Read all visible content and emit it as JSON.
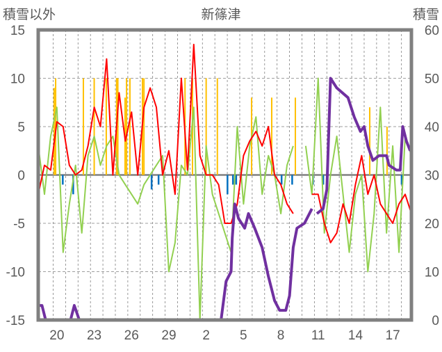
{
  "chart_data": {
    "type": "line",
    "title": "新篠津",
    "ylabel_left": "積雪以外",
    "ylabel_right": "積雪",
    "ylim_left": [
      -15,
      15
    ],
    "ylim_right": [
      0,
      60
    ],
    "yticks_left": [
      "15",
      "10",
      "5",
      "0",
      "-5",
      "-10",
      "-15"
    ],
    "yticks_left_values": [
      15,
      10,
      5,
      0,
      -5,
      -10,
      -15
    ],
    "yticks_right": [
      "60",
      "50",
      "40",
      "30",
      "20",
      "10",
      "0"
    ],
    "yticks_right_values": [
      60,
      50,
      40,
      30,
      20,
      10,
      0
    ],
    "xlim_days": [
      0,
      30
    ],
    "xtick_labels": [
      "20",
      "23",
      "26",
      "29",
      "2",
      "5",
      "8",
      "11",
      "14",
      "17"
    ],
    "xtick_positions_days": [
      1.5,
      4.5,
      7.5,
      10.5,
      13.5,
      16.5,
      19.5,
      22.5,
      25.5,
      28.5
    ],
    "grid": true,
    "colors": {
      "red": "#ff0000",
      "green": "#92d050",
      "orange": "#ffc000",
      "blue": "#0070c0",
      "purple": "#7030a0",
      "frame": "#808080"
    },
    "series": [
      {
        "name": "green",
        "axis": "left",
        "step_days": 0.5,
        "values": [
          3,
          -2,
          4,
          7,
          -8,
          -3,
          1,
          -6,
          2,
          4,
          1,
          3,
          4,
          0,
          -1,
          -2,
          -3,
          -1,
          0,
          1,
          2,
          -10,
          -7,
          1,
          0,
          7,
          -15,
          3,
          -2,
          -4,
          -6,
          -8,
          5,
          -3,
          3,
          6,
          -2,
          2,
          0,
          -4,
          1,
          3,
          null,
          3,
          -2,
          10,
          -6,
          0,
          4,
          -2,
          -8,
          -2,
          0,
          -10,
          -4,
          7,
          -6,
          3,
          -8,
          4,
          2
        ]
      },
      {
        "name": "red",
        "axis": "left",
        "step_days": 0.5,
        "values": [
          -2,
          1,
          0.5,
          5.5,
          5,
          1,
          0,
          0.5,
          3,
          7,
          5,
          12,
          0,
          8.5,
          3.5,
          6.5,
          0,
          7,
          9,
          7,
          0,
          2.5,
          -2,
          10,
          0.5,
          13.5,
          2,
          0,
          0,
          -1,
          -5,
          -5,
          -3,
          2,
          3.5,
          4.5,
          3,
          5,
          0,
          -1,
          -3,
          -4,
          null,
          null,
          -2,
          -2,
          -5,
          -7,
          -6,
          -3,
          -5,
          -1,
          2,
          -2,
          0,
          -3,
          -4,
          -5,
          -3,
          -2,
          -4
        ]
      },
      {
        "name": "purple",
        "axis": "right",
        "points": [
          [
            0,
            3
          ],
          [
            0.3,
            3
          ],
          [
            0.6,
            0
          ],
          [
            2.6,
            0
          ],
          [
            2.9,
            3
          ],
          [
            3.3,
            0
          ],
          [
            14.7,
            0
          ],
          [
            15.1,
            8
          ],
          [
            15.5,
            10
          ],
          [
            15.6,
            17
          ],
          [
            15.8,
            24
          ],
          [
            16.1,
            21
          ],
          [
            16.6,
            19
          ],
          [
            16.9,
            22
          ],
          [
            17.4,
            19
          ],
          [
            18.0,
            15
          ],
          [
            18.5,
            9
          ],
          [
            19.0,
            4
          ],
          [
            19.4,
            2
          ],
          [
            19.9,
            2
          ],
          [
            20.2,
            5
          ],
          [
            20.5,
            15
          ],
          [
            20.8,
            19
          ],
          [
            21.4,
            20
          ],
          [
            21.8,
            22
          ],
          [
            22.0,
            23
          ],
          [
            null,
            null
          ],
          [
            22.4,
            22
          ],
          [
            22.9,
            23
          ],
          [
            23.2,
            27
          ],
          [
            23.5,
            50
          ],
          [
            24.0,
            48
          ],
          [
            24.9,
            46
          ],
          [
            25.4,
            42
          ],
          [
            25.9,
            39
          ],
          [
            26.2,
            40
          ],
          [
            26.5,
            36
          ],
          [
            26.9,
            33
          ],
          [
            27.4,
            34
          ],
          [
            28.0,
            34
          ],
          [
            28.2,
            32
          ],
          [
            28.8,
            31
          ],
          [
            29.1,
            31
          ],
          [
            29.3,
            40
          ],
          [
            29.6,
            37
          ],
          [
            29.9,
            35
          ]
        ]
      }
    ],
    "bars_orange": [
      [
        1.28,
        9
      ],
      [
        1.4,
        10
      ],
      [
        3.63,
        10
      ],
      [
        4.5,
        10
      ],
      [
        5.47,
        10
      ],
      [
        6.3,
        10
      ],
      [
        6.4,
        10
      ],
      [
        6.98,
        8
      ],
      [
        7.1,
        10
      ],
      [
        7.37,
        10
      ],
      [
        8.38,
        10
      ],
      [
        8.5,
        10
      ],
      [
        11.8,
        10
      ],
      [
        12.4,
        10
      ],
      [
        13.5,
        10
      ],
      [
        14.4,
        10
      ],
      [
        17.15,
        8
      ],
      [
        18.77,
        8
      ],
      [
        20.67,
        8
      ],
      [
        26.65,
        7
      ],
      [
        28.04,
        5
      ]
    ],
    "bars_blue": [
      [
        1.96,
        -1
      ],
      [
        2.8,
        -2
      ],
      [
        9.1,
        -1.5
      ],
      [
        9.66,
        -1
      ],
      [
        15.2,
        -2
      ],
      [
        15.64,
        -1
      ],
      [
        15.9,
        -1
      ],
      [
        19.55,
        -1
      ],
      [
        20.4,
        -1
      ],
      [
        22.07,
        -1
      ],
      [
        22.9,
        -1
      ],
      [
        25.98,
        -0.5
      ],
      [
        29.2,
        -1
      ]
    ]
  }
}
